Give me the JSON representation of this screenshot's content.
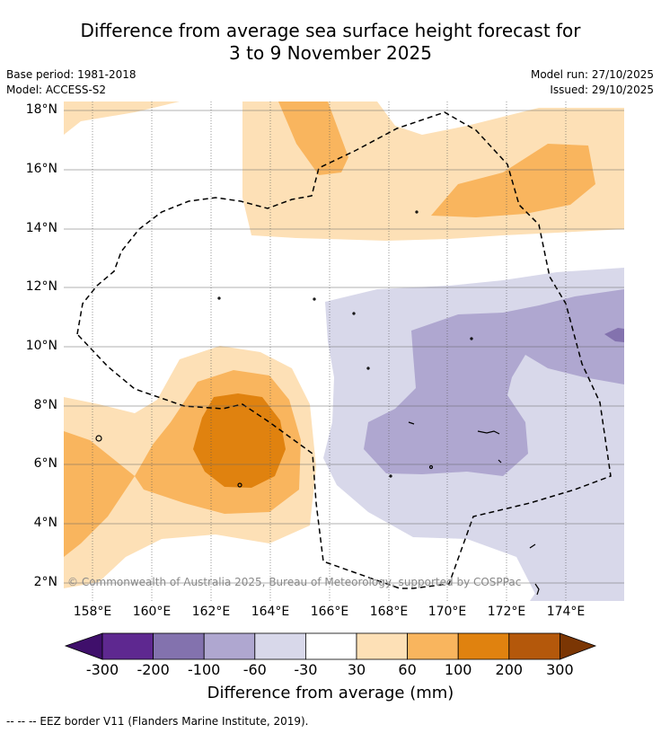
{
  "title": {
    "line1": "Difference from average sea surface height forecast for",
    "line2": "3 to 9 November 2025"
  },
  "meta": {
    "base_period": "Base period: 1981-2018",
    "model": "Model: ACCESS-S2",
    "model_run": "Model run: 27/10/2025",
    "issued": "Issued: 29/10/2025"
  },
  "axes": {
    "lat_labels": [
      "18°N",
      "16°N",
      "14°N",
      "12°N",
      "10°N",
      "8°N",
      "6°N",
      "4°N",
      "2°N"
    ],
    "lon_labels": [
      "158°E",
      "160°E",
      "162°E",
      "164°E",
      "166°E",
      "168°E",
      "170°E",
      "172°E",
      "174°E"
    ]
  },
  "copyright": "© Commonwealth of Australia 2025, Bureau of Meteorology, supported by COSPPac",
  "colorbar": {
    "ticks": [
      "-300",
      "-200",
      "-100",
      "-60",
      "-30",
      "30",
      "60",
      "100",
      "200",
      "300"
    ],
    "colors": [
      "#3f0f6b",
      "#5e2890",
      "#8372ae",
      "#afa7d0",
      "#d8d8ea",
      "#ffffff",
      "#fde0b6",
      "#f9b55e",
      "#e0820f",
      "#b4580b",
      "#7b3604"
    ],
    "label": "Difference from average (mm)"
  },
  "footnote": "--  --  -- EEZ border V11 (Flanders Marine Institute, 2019)."
}
